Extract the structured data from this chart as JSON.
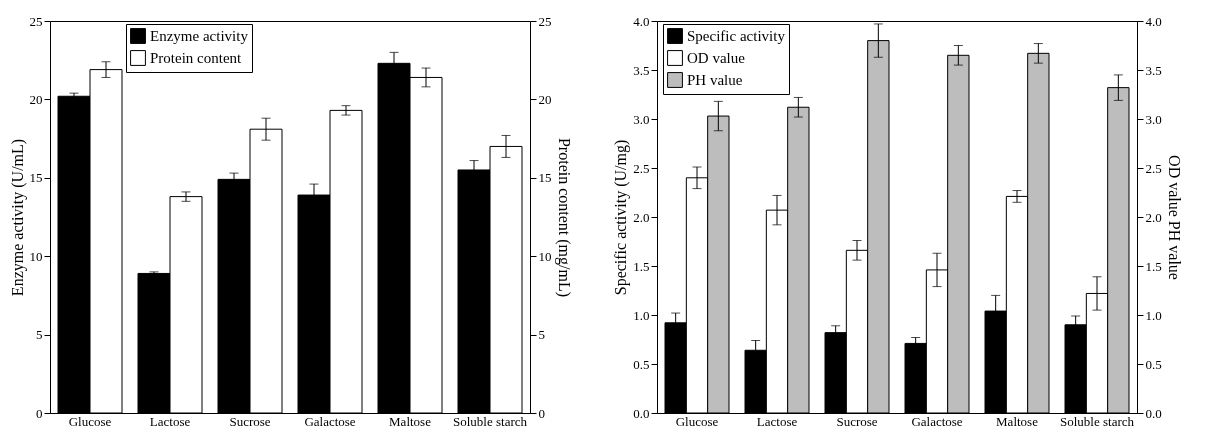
{
  "chart_data": [
    {
      "type": "bar",
      "categories": [
        "Glucose",
        "Lactose",
        "Sucrose",
        "Galactose",
        "Maltose",
        "Soluble starch"
      ],
      "ylabel": "Enzyme activity (U/mL)",
      "y2label": "Protein content (mg/mL)",
      "ylim": [
        0,
        25
      ],
      "yticks": [
        0,
        5,
        10,
        15,
        20,
        25
      ],
      "y2lim": [
        0,
        25
      ],
      "y2ticks": [
        0,
        5,
        10,
        15,
        20,
        25
      ],
      "legend": "top left",
      "series": [
        {
          "name": "Enzyme activity",
          "color": "#000000",
          "values": [
            20.2,
            8.9,
            14.9,
            13.9,
            22.3,
            15.5
          ],
          "errors": [
            0.2,
            0.1,
            0.4,
            0.7,
            0.7,
            0.6
          ]
        },
        {
          "name": "Protein content",
          "color": "#ffffff",
          "axis": "y2",
          "values": [
            21.9,
            13.8,
            18.1,
            19.3,
            21.4,
            17.0
          ],
          "errors": [
            0.5,
            0.3,
            0.7,
            0.3,
            0.6,
            0.7
          ]
        }
      ]
    },
    {
      "type": "bar",
      "categories": [
        "Glucose",
        "Lactose",
        "Sucrose",
        "Galactose",
        "Maltose",
        "Soluble starch"
      ],
      "ylabel": "Specific activity (U/mg)",
      "y2label": "OD value PH value",
      "ylim": [
        0,
        4
      ],
      "yticks": [
        {
          "value": 0,
          "label": "0.0"
        },
        {
          "value": 0.5,
          "label": "0.5"
        },
        {
          "value": 1,
          "label": "1.0"
        },
        {
          "value": 1.5,
          "label": "1.5"
        },
        {
          "value": 2,
          "label": "2.0"
        },
        {
          "value": 2.5,
          "label": "2.5"
        },
        {
          "value": 3,
          "label": "3.0"
        },
        {
          "value": 3.5,
          "label": "3.5"
        },
        {
          "value": 4,
          "label": "4.0"
        }
      ],
      "y2lim": [
        0,
        4
      ],
      "y2ticks": [
        {
          "value": 0,
          "label": "0.0"
        },
        {
          "value": 0.5,
          "label": "0.5"
        },
        {
          "value": 1,
          "label": "1.0"
        },
        {
          "value": 1.5,
          "label": "1.5"
        },
        {
          "value": 2,
          "label": "2.0"
        },
        {
          "value": 2.5,
          "label": "2.5"
        },
        {
          "value": 3,
          "label": "3.0"
        },
        {
          "value": 3.5,
          "label": "3.5"
        },
        {
          "value": 4,
          "label": "4.0"
        }
      ],
      "legend": "top left",
      "series": [
        {
          "name": "Specific activity",
          "color": "#000000",
          "values": [
            0.92,
            0.64,
            0.82,
            0.71,
            1.04,
            0.9
          ],
          "errors": [
            0.1,
            0.1,
            0.07,
            0.06,
            0.16,
            0.09
          ]
        },
        {
          "name": "OD value",
          "color": "#ffffff",
          "axis": "y2",
          "values": [
            2.4,
            2.07,
            1.66,
            1.46,
            2.21,
            1.22
          ],
          "errors": [
            0.11,
            0.15,
            0.1,
            0.17,
            0.06,
            0.17
          ]
        },
        {
          "name": "PH value",
          "color": "#bdbdbd",
          "axis": "y2",
          "values": [
            3.03,
            3.12,
            3.8,
            3.65,
            3.67,
            3.32
          ],
          "errors": [
            0.15,
            0.1,
            0.17,
            0.1,
            0.1,
            0.13
          ]
        }
      ]
    }
  ]
}
